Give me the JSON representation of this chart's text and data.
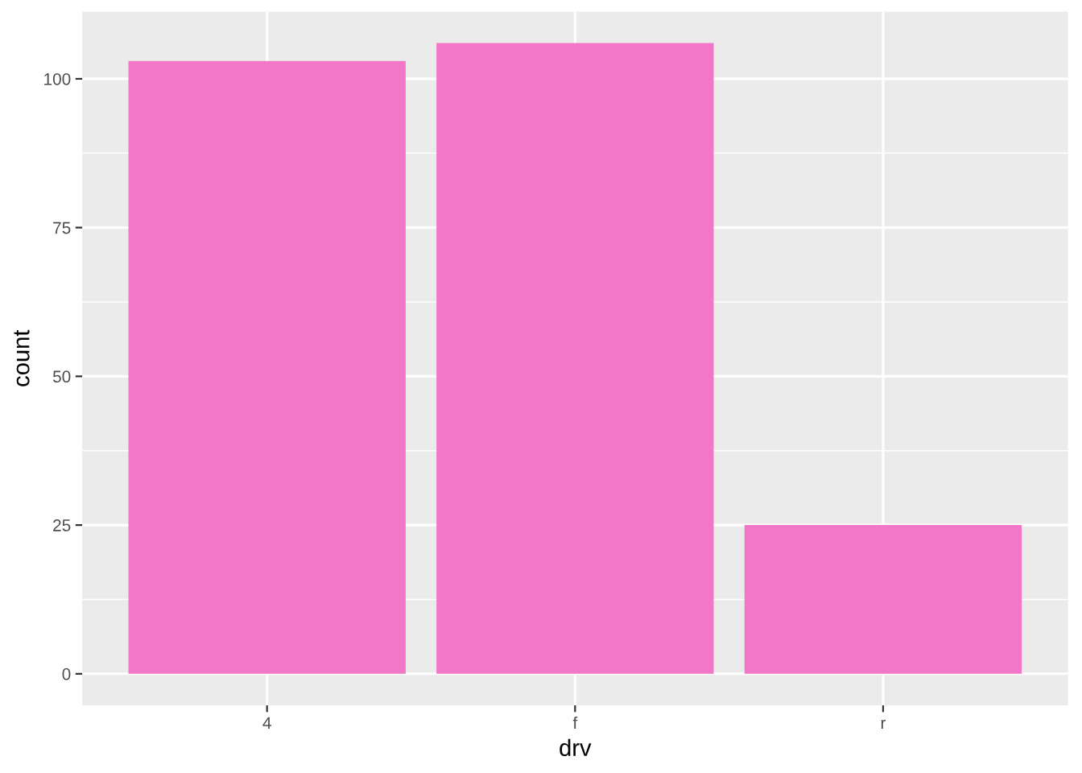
{
  "chart_data": {
    "type": "bar",
    "xlabel": "drv",
    "ylabel": "count",
    "categories": [
      "4",
      "f",
      "r"
    ],
    "values": [
      103,
      106,
      25
    ],
    "color": "#f277c6",
    "ylim": [
      -5.3,
      111.3
    ],
    "yticks": [
      0,
      25,
      50,
      75,
      100
    ],
    "grid": true
  }
}
